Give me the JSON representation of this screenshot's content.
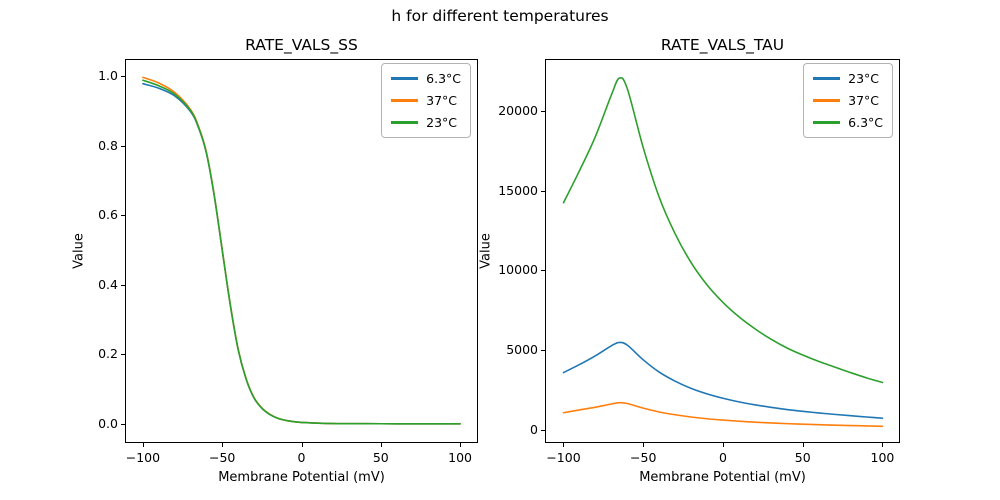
{
  "figure": {
    "suptitle": "h for different temperatures",
    "background": "#ffffff"
  },
  "palette": {
    "blue": "#1f77b4",
    "orange": "#ff7f0e",
    "green": "#2ca02c",
    "spine": "#000000",
    "legend_border": "#b3b3b3"
  },
  "chart_data": [
    {
      "type": "line",
      "title": "RATE_VALS_SS",
      "xlabel": "Membrane Potential (mV)",
      "ylabel": "Value",
      "xlim": [
        -111.3,
        111.3
      ],
      "ylim": [
        -0.055,
        1.049
      ],
      "xticks": [
        -100,
        -50,
        0,
        50,
        100
      ],
      "xtick_labels": [
        "−100",
        "−50",
        "0",
        "50",
        "100"
      ],
      "yticks": [
        0.0,
        0.2,
        0.4,
        0.6,
        0.8,
        1.0
      ],
      "ytick_labels": [
        "0.0",
        "0.2",
        "0.4",
        "0.6",
        "0.8",
        "1.0"
      ],
      "grid": false,
      "legend_position": "upper right",
      "x": [
        -100,
        -90,
        -80,
        -70,
        -65,
        -60,
        -55,
        -50,
        -45,
        -40,
        -35,
        -30,
        -25,
        -20,
        -15,
        -10,
        0,
        20,
        40,
        70,
        100
      ],
      "series": [
        {
          "name": "6.3°C",
          "color": "#1f77b4",
          "values": [
            0.978,
            0.965,
            0.943,
            0.898,
            0.852,
            0.779,
            0.655,
            0.5,
            0.345,
            0.215,
            0.13,
            0.075,
            0.045,
            0.027,
            0.016,
            0.01,
            0.004,
            0.001,
            0.0005,
            0.0002,
            0.0001
          ]
        },
        {
          "name": "37°C",
          "color": "#ff7f0e",
          "values": [
            0.996,
            0.98,
            0.953,
            0.904,
            0.856,
            0.782,
            0.657,
            0.501,
            0.346,
            0.216,
            0.131,
            0.076,
            0.046,
            0.028,
            0.016,
            0.01,
            0.004,
            0.001,
            0.0005,
            0.0002,
            0.0001
          ]
        },
        {
          "name": "23°C",
          "color": "#2ca02c",
          "values": [
            0.988,
            0.972,
            0.948,
            0.901,
            0.854,
            0.78,
            0.656,
            0.5,
            0.345,
            0.215,
            0.13,
            0.075,
            0.045,
            0.027,
            0.016,
            0.01,
            0.004,
            0.001,
            0.0005,
            0.0002,
            0.0001
          ]
        }
      ]
    },
    {
      "type": "line",
      "title": "RATE_VALS_TAU",
      "xlabel": "Membrane Potential (mV)",
      "ylabel": "Value",
      "xlim": [
        -111.6,
        111.0
      ],
      "ylim": [
        -815,
        23260
      ],
      "xticks": [
        -100,
        -50,
        0,
        50,
        100
      ],
      "xtick_labels": [
        "−100",
        "−50",
        "0",
        "50",
        "100"
      ],
      "yticks": [
        0,
        5000,
        10000,
        15000,
        20000
      ],
      "ytick_labels": [
        "0",
        "5000",
        "10000",
        "15000",
        "20000"
      ],
      "grid": false,
      "legend_position": "upper right",
      "x": [
        -100,
        -90,
        -80,
        -70,
        -65,
        -60,
        -50,
        -40,
        -30,
        -20,
        -10,
        0,
        10,
        20,
        30,
        40,
        50,
        60,
        70,
        80,
        90,
        100
      ],
      "series": [
        {
          "name": "23°C",
          "color": "#1f77b4",
          "values": [
            3600,
            4100,
            4650,
            5280,
            5490,
            5320,
            4400,
            3630,
            3060,
            2610,
            2265,
            1990,
            1765,
            1580,
            1420,
            1280,
            1170,
            1070,
            980,
            895,
            815,
            740
          ]
        },
        {
          "name": "37°C",
          "color": "#ff7f0e",
          "values": [
            1080,
            1260,
            1430,
            1630,
            1710,
            1660,
            1370,
            1130,
            955,
            815,
            705,
            620,
            550,
            490,
            440,
            400,
            365,
            335,
            305,
            280,
            255,
            230
          ]
        },
        {
          "name": "6.3°C",
          "color": "#2ca02c",
          "values": [
            14250,
            16250,
            18400,
            21000,
            22060,
            21400,
            17700,
            14600,
            12300,
            10500,
            9100,
            8000,
            7100,
            6350,
            5700,
            5150,
            4700,
            4300,
            3950,
            3600,
            3270,
            2980
          ]
        }
      ]
    }
  ]
}
